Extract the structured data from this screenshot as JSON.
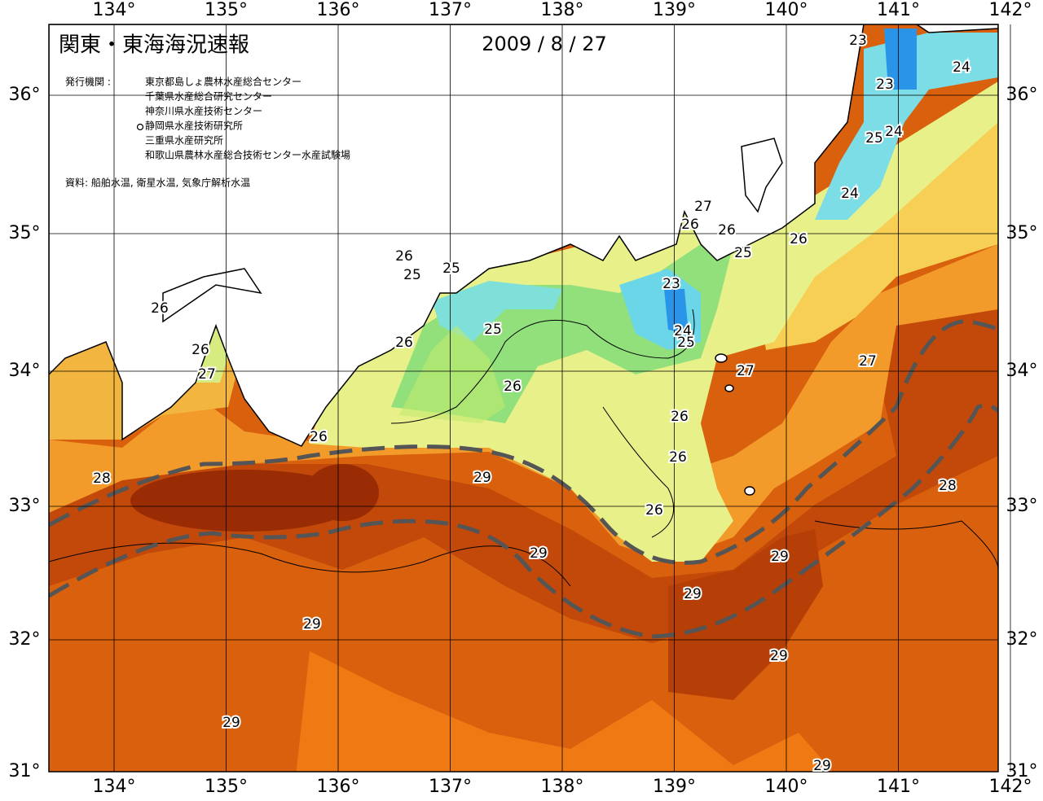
{
  "header": {
    "title": "関東・東海海況速報",
    "date": "2009 / 8 / 27",
    "agencies_label": "発行機関 :",
    "agencies": [
      "東京都島しょ農林水産総合センター",
      "千葉県水産総合研究センター",
      "神奈川県水産技術センター",
      "静岡県水産技術研究所",
      "三重県水産研究所",
      "和歌山県農林水産総合技術センター水産試験場"
    ],
    "source": "資料: 船舶水温, 衛星水温, 気象庁解析水温"
  },
  "map": {
    "lon_labels": [
      "134°",
      "135°",
      "136°",
      "137°",
      "138°",
      "139°",
      "140°",
      "141°",
      "142°"
    ],
    "lat_labels": [
      "36°",
      "35°",
      "34°",
      "33°",
      "32°",
      "31°"
    ],
    "contour_labels": [
      "23",
      "24",
      "23",
      "24",
      "25",
      "24",
      "26",
      "27",
      "26",
      "26",
      "25",
      "23",
      "24",
      "25",
      "27",
      "27",
      "26",
      "25",
      "25",
      "26",
      "26",
      "27",
      "25",
      "26",
      "26",
      "26",
      "26",
      "26",
      "26",
      "28",
      "29",
      "28",
      "29",
      "29",
      "29",
      "29",
      "29",
      "29",
      "29"
    ]
  }
}
